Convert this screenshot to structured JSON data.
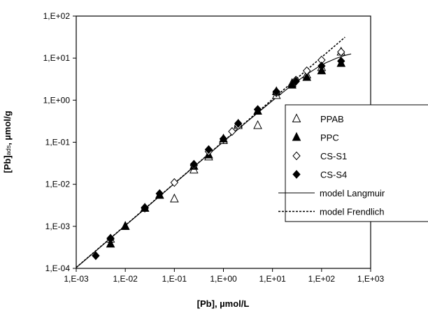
{
  "chart_data": {
    "type": "scatter",
    "title": "",
    "xlabel": "[Pb], µmol/L",
    "ylabel": {
      "main": "[Pb]",
      "sub": "ads",
      "rest": ", µmol/g"
    },
    "xscale": "log",
    "yscale": "log",
    "xlim": [
      0.001,
      1000
    ],
    "ylim": [
      0.0001,
      100
    ],
    "xticks": [
      0.001,
      0.01,
      0.1,
      1,
      10,
      100,
      1000
    ],
    "xtick_labels": [
      "1,E-03",
      "1,E-02",
      "1,E-01",
      "1,E+00",
      "1,E+01",
      "1,E+02",
      "1,E+03"
    ],
    "yticks": [
      0.0001,
      0.001,
      0.01,
      0.1,
      1,
      10,
      100
    ],
    "ytick_labels": [
      "1,E-04",
      "1,E-03",
      "1,E-02",
      "1,E-01",
      "1,E+00",
      "1,E+01",
      "1,E+02"
    ],
    "grid": false,
    "legend_position": "right",
    "series": [
      {
        "name": "PPAB",
        "marker": "triangle-open",
        "points": [
          [
            0.005,
            0.0005
          ],
          [
            0.01,
            0.001
          ],
          [
            0.025,
            0.0027
          ],
          [
            0.05,
            0.0055
          ],
          [
            0.1,
            0.0045
          ],
          [
            0.25,
            0.022
          ],
          [
            0.5,
            0.045
          ],
          [
            1,
            0.11
          ],
          [
            2,
            0.25
          ],
          [
            5,
            0.25
          ],
          [
            12,
            1.3
          ],
          [
            25,
            2.5
          ],
          [
            50,
            4
          ],
          [
            100,
            6
          ],
          [
            250,
            14
          ]
        ]
      },
      {
        "name": "PPC",
        "marker": "triangle-filled",
        "points": [
          [
            0.005,
            0.00038
          ],
          [
            0.01,
            0.001
          ],
          [
            0.025,
            0.0027
          ],
          [
            0.05,
            0.0055
          ],
          [
            0.25,
            0.027
          ],
          [
            0.5,
            0.05
          ],
          [
            1,
            0.12
          ],
          [
            2,
            0.27
          ],
          [
            5,
            0.55
          ],
          [
            12,
            1.6
          ],
          [
            25,
            2.3
          ],
          [
            50,
            3.5
          ],
          [
            100,
            5
          ],
          [
            250,
            7.5
          ]
        ]
      },
      {
        "name": "CS-S1",
        "marker": "diamond-open",
        "points": [
          [
            0.005,
            0.0005
          ],
          [
            0.025,
            0.0027
          ],
          [
            0.1,
            0.011
          ],
          [
            0.25,
            0.028
          ],
          [
            0.5,
            0.06
          ],
          [
            1,
            0.12
          ],
          [
            1.5,
            0.18
          ],
          [
            2,
            0.25
          ],
          [
            5,
            0.6
          ],
          [
            12,
            1.5
          ],
          [
            30,
            3
          ],
          [
            50,
            5
          ],
          [
            100,
            9
          ],
          [
            250,
            14
          ]
        ]
      },
      {
        "name": "CS-S4",
        "marker": "diamond-filled",
        "points": [
          [
            0.0025,
            0.0002
          ],
          [
            0.005,
            0.00052
          ],
          [
            0.025,
            0.0028
          ],
          [
            0.05,
            0.006
          ],
          [
            0.25,
            0.03
          ],
          [
            0.5,
            0.067
          ],
          [
            1,
            0.12
          ],
          [
            2,
            0.28
          ],
          [
            5,
            0.6
          ],
          [
            12,
            1.6
          ],
          [
            30,
            2.8
          ],
          [
            100,
            6.5
          ],
          [
            250,
            8.5
          ]
        ]
      },
      {
        "name": "model Langmuir",
        "line": "solid",
        "points": [
          [
            0.001,
            0.000104
          ],
          [
            0.003,
            0.00031
          ],
          [
            0.01,
            0.00104
          ],
          [
            0.03,
            0.00311
          ],
          [
            0.1,
            0.0104
          ],
          [
            0.3,
            0.031
          ],
          [
            1,
            0.103
          ],
          [
            3,
            0.305
          ],
          [
            10,
            0.973
          ],
          [
            20,
            1.86
          ],
          [
            30,
            2.68
          ],
          [
            50,
            4.13
          ],
          [
            80,
            5.88
          ],
          [
            120,
            7.65
          ],
          [
            200,
            9.91
          ],
          [
            300,
            11.6
          ],
          [
            400,
            12.6
          ]
        ]
      },
      {
        "name": "model Frendlich",
        "line": "dotted",
        "points": [
          [
            0.001,
            0.000105
          ],
          [
            0.01,
            0.00105
          ],
          [
            0.1,
            0.0105
          ],
          [
            1,
            0.105
          ],
          [
            10,
            1.05
          ],
          [
            100,
            10.5
          ],
          [
            300,
            31.5
          ]
        ]
      }
    ]
  }
}
